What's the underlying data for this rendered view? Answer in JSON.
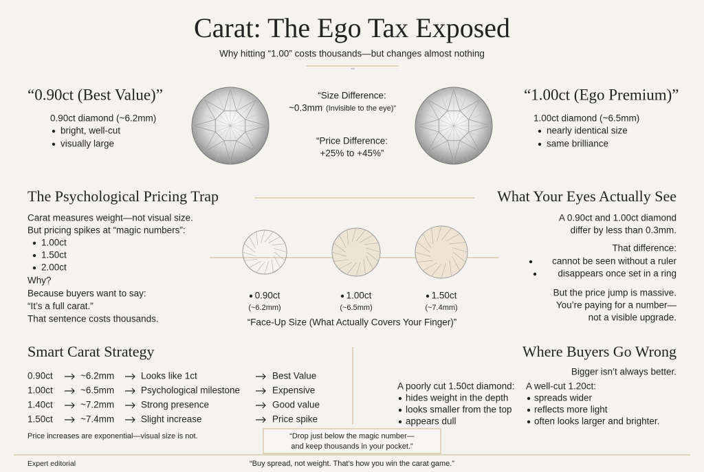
{
  "header": {
    "title": "Carat: The Ego Tax Exposed",
    "subtitle": "Why hitting “1.00” costs thousands—but changes almost nothing"
  },
  "comparison": {
    "left": {
      "title": "“0.90ct (Best Value)”",
      "description": "0.90ct diamond (~6.2mm)",
      "bullets": [
        "bright, well-cut",
        "visually large"
      ]
    },
    "center": {
      "size_label": "“Size Difference:",
      "size_value": "~0.3mm",
      "size_note": "(Invisible to the eye)”",
      "price_label": "“Price Difference:",
      "price_value": "+25% to +45%”"
    },
    "right": {
      "title": "“1.00ct (Ego Premium)”",
      "description": "1.00ct diamond (~6.5mm)",
      "bullets": [
        "nearly identical size",
        "same brilliance"
      ]
    }
  },
  "pricing_trap": {
    "title": "The Psychological Pricing Trap",
    "lines": [
      "Carat measures weight—not visual size.",
      "But pricing spikes at “magic numbers”:"
    ],
    "bullets": [
      "1.00ct",
      "1.50ct",
      "2.00ct"
    ],
    "reason_lines": [
      "Why?",
      "Because buyers want to say:",
      "“It’s a full carat.”",
      "That sentence costs thousands."
    ]
  },
  "face_up": {
    "sizes": [
      {
        "carat": "0.90ct",
        "mm": "(~6.2mm)"
      },
      {
        "carat": "1.00ct",
        "mm": "(~6.5mm)"
      },
      {
        "carat": "1.50ct",
        "mm": "(~7.4mm)"
      }
    ],
    "caption": "“Face-Up Size (What Actually Covers Your Finger)”"
  },
  "eyes": {
    "title": "What Your Eyes Actually See",
    "intro": [
      "A 0.90ct and 1.00ct diamond",
      "differ by less than 0.3mm."
    ],
    "difference_label": "That difference:",
    "bullets": [
      "cannot be seen without a ruler",
      "disappears once set in a ring"
    ],
    "conclusion": [
      "But the price jump is massive.",
      "You’re paying for a number—",
      "not a visible upgrade."
    ]
  },
  "strategy": {
    "title": "Smart Carat Strategy",
    "rows": [
      [
        "0.90ct",
        "~6.2mm",
        "Looks like 1ct",
        "Best Value"
      ],
      [
        "1.00ct",
        "~6.5mm",
        "Psychological milestone",
        "Expensive"
      ],
      [
        "1.40ct",
        "~7.2mm",
        "Strong presence",
        "Good value"
      ],
      [
        "1.50ct",
        "~7.4mm",
        "Slight increase",
        "Price spike"
      ]
    ],
    "note": "Price increases are exponential—visual size is not."
  },
  "wrong": {
    "title": "Where Buyers Go Wrong",
    "subtitle": "Bigger isn’t always better.",
    "poor": {
      "heading": "A poorly cut 1.50ct diamond:",
      "bullets": [
        "hides weight in the depth",
        "looks smaller from the top",
        "appears dull"
      ]
    },
    "good": {
      "heading": "A well-cut 1.20ct:",
      "bullets": [
        "spreads wider",
        "reflects more light",
        "often looks larger and brighter."
      ]
    }
  },
  "quote": {
    "lines": [
      "“Drop just below the magic number—",
      "and keep thousands in your pocket.”"
    ]
  },
  "footer": {
    "source": "Expert editorial",
    "tagline": "“Buy spread, not weight. That’s how you win the carat game.”"
  }
}
